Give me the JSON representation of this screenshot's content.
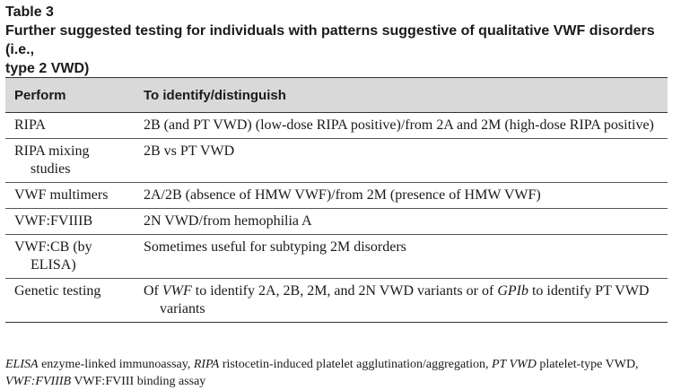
{
  "header": {
    "table_label": "Table 3",
    "caption_line1": "Further suggested testing for individuals with patterns suggestive of qualitative VWF disorders (i.e.,",
    "caption_line2": "type 2 VWD)"
  },
  "table": {
    "columns": [
      "Perform",
      "To identify/distinguish"
    ],
    "rows": [
      {
        "perform": "RIPA",
        "identify": "2B (and PT VWD) (low-dose RIPA positive)/from 2A and 2M (high-dose RIPA positive)"
      },
      {
        "perform": "RIPA mixing studies",
        "identify": "2B vs PT VWD"
      },
      {
        "perform": "VWF multimers",
        "identify": "2A/2B (absence of HMW VWF)/from 2M (presence of HMW VWF)"
      },
      {
        "perform": "VWF:FVIIIB",
        "identify": "2N VWD/from hemophilia A"
      },
      {
        "perform": "VWF:CB (by ELISA)",
        "identify": "Sometimes useful for subtyping 2M disorders"
      },
      {
        "perform": "Genetic testing",
        "identify_parts": [
          "Of ",
          "VWF",
          " to identify 2A, 2B, 2M, and 2N VWD variants or of ",
          "GPIb",
          " to identify PT VWD variants"
        ]
      }
    ]
  },
  "footnote": {
    "parts": [
      {
        "abbr": "ELISA",
        "def": " enzyme-linked immunoassay, "
      },
      {
        "abbr": "RIPA",
        "def": " ristocetin-induced platelet agglutination/aggregation, "
      },
      {
        "abbr": "PT VWD",
        "def": " platelet-type VWD, "
      },
      {
        "abbr": "VWF:FVIIIB",
        "def": " VWF:FVIII binding assay"
      }
    ]
  }
}
